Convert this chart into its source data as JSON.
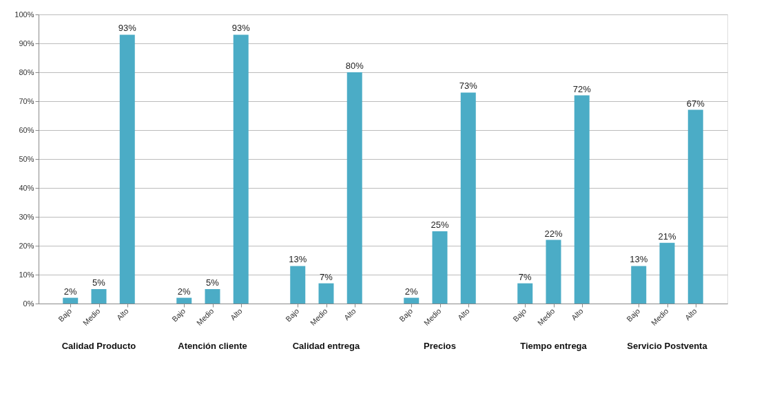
{
  "chart_data": {
    "type": "bar",
    "categories": [
      "Bajo",
      "Medio",
      "Alto",
      "Bajo",
      "Medio",
      "Alto",
      "Bajo",
      "Medio",
      "Alto",
      "Bajo",
      "Medio",
      "Alto",
      "Bajo",
      "Medio",
      "Alto",
      "Bajo",
      "Medio",
      "Alto"
    ],
    "values": [
      2,
      5,
      93,
      2,
      5,
      93,
      13,
      7,
      80,
      2,
      25,
      73,
      7,
      22,
      72,
      13,
      21,
      67
    ],
    "value_labels": [
      "2%",
      "5%",
      "93%",
      "2%",
      "5%",
      "93%",
      "13%",
      "7%",
      "80%",
      "2%",
      "25%",
      "73%",
      "7%",
      "22%",
      "72%",
      "13%",
      "21%",
      "67%"
    ],
    "color": "#4bacc6",
    "annotations": [
      "Calidad Producto",
      "Atención cliente",
      "Calidad entrega",
      "Precios",
      "Tiempo entrega",
      "Servicio  Postventa"
    ],
    "ylim": [
      0,
      100
    ],
    "yticks": [
      {
        "value": 0,
        "label": "0%"
      },
      {
        "value": 10,
        "label": "10%"
      },
      {
        "value": 20,
        "label": "20%"
      },
      {
        "value": 30,
        "label": "30%"
      },
      {
        "value": 40,
        "label": "40%"
      },
      {
        "value": 50,
        "label": "50%"
      },
      {
        "value": 60,
        "label": "60%"
      },
      {
        "value": 70,
        "label": "70%"
      },
      {
        "value": 80,
        "label": "80%"
      },
      {
        "value": 90,
        "label": "90%"
      },
      {
        "value": 100,
        "label": "100%"
      }
    ],
    "grid": "y"
  }
}
